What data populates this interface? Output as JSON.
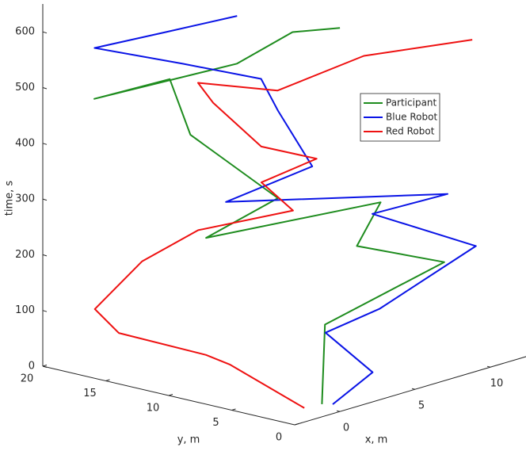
{
  "chart_data": {
    "type": "line3d",
    "xlabel": "x, m",
    "ylabel": "y, m",
    "zlabel": "time, s",
    "xlim": [
      -3,
      12.5
    ],
    "ylim": [
      0,
      20
    ],
    "zlim": [
      0,
      650
    ],
    "xticks": [
      0,
      5,
      10
    ],
    "yticks": [
      0,
      5,
      10,
      15,
      20
    ],
    "zticks": [
      0,
      100,
      200,
      300,
      400,
      500,
      600
    ],
    "legend": "upper right",
    "series": [
      {
        "name": "Participant",
        "color": "#1e8c1e",
        "x": [
          0.4,
          4.2,
          9.95,
          5.9,
          7.9,
          0.4,
          4.0,
          3.8,
          4.6,
          -1.5,
          4.3,
          6.4,
          6.2
        ],
        "y": [
          1.9,
          6.2,
          3.6,
          5.7,
          6.2,
          11.1,
          9.7,
          16.4,
          19.0,
          17.7,
          13.3,
          11.4,
          7.4
        ],
        "z": [
          0,
          90,
          170,
          220,
          280,
          250,
          300,
          380,
          460,
          480,
          520,
          570,
          600
        ]
      },
      {
        "name": "Blue Robot",
        "color": "#0a14e6",
        "x": [
          0.7,
          3.1,
          3.9,
          5.0,
          10.8,
          7.6,
          9.5,
          1.3,
          6.2,
          6.6,
          5.9,
          2.7,
          -1.4,
          0.6,
          3.3
        ],
        "y": [
          1.4,
          1.1,
          5.8,
          2.8,
          2.1,
          6.5,
          2.8,
          10.6,
          9.6,
          12.8,
          13.3,
          15.7,
          17.8,
          14.5,
          12.1
        ],
        "z": [
          0,
          40,
          80,
          130,
          200,
          260,
          300,
          310,
          340,
          420,
          480,
          520,
          570,
          600,
          620
        ]
      },
      {
        "name": "Red Robot",
        "color": "#ee1111",
        "x": [
          -0.6,
          1.3,
          0.4,
          -0.8,
          -1.3,
          2.6,
          4.65,
          7.1,
          5.5,
          8.0,
          4.4,
          4.3,
          3.55,
          2.8,
          6.2,
          9.3
        ],
        "y": [
          2.1,
          10.3,
          11.1,
          16.6,
          17.9,
          18.8,
          16.8,
          12.2,
          12.8,
          11.4,
          11.5,
          15.2,
          15.5,
          8.3,
          5.5,
          0.6
        ],
        "z": [
          0,
          20,
          40,
          60,
          100,
          150,
          200,
          240,
          300,
          330,
          380,
          440,
          480,
          510,
          560,
          590
        ]
      }
    ]
  }
}
